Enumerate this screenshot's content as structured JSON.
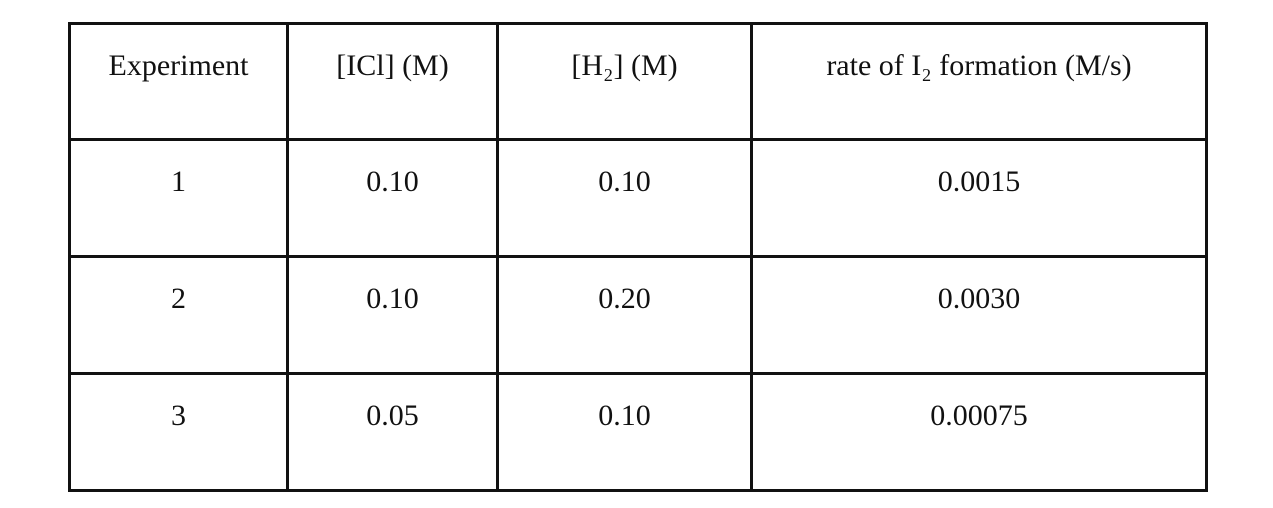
{
  "table": {
    "header": [
      "Experiment",
      "[ICl] (M)",
      "[H₂] (M)",
      "rate of I₂ formation (M/s)"
    ],
    "rows": [
      [
        "1",
        "0.10",
        "0.10",
        "0.0015"
      ],
      [
        "2",
        "0.10",
        "0.20",
        "0.0030"
      ],
      [
        "3",
        "0.05",
        "0.10",
        "0.00075"
      ]
    ]
  }
}
